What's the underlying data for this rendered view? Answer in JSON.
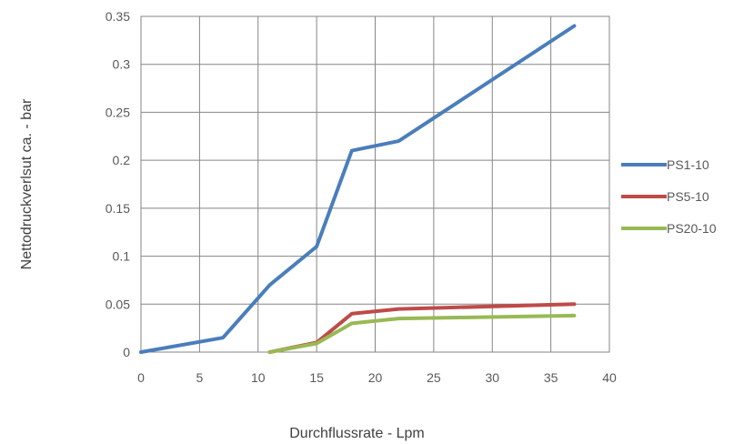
{
  "chart_data": {
    "type": "line",
    "title": "",
    "xlabel": "Durchflussrate - Lpm",
    "ylabel": "Nettodruckverlsut ca. - bar",
    "xlim": [
      0,
      40
    ],
    "ylim": [
      0,
      0.35
    ],
    "x_ticks": [
      "0",
      "5",
      "10",
      "15",
      "20",
      "25",
      "30",
      "35",
      "40"
    ],
    "y_ticks": [
      "0",
      "0.05",
      "0.1",
      "0.15",
      "0.2",
      "0.25",
      "0.3",
      "0.35"
    ],
    "grid": true,
    "legend_position": "right",
    "series": [
      {
        "name": "PS1-10",
        "color": "#4a7ebb",
        "points": [
          [
            0,
            0
          ],
          [
            7,
            0.015
          ],
          [
            11,
            0.07
          ],
          [
            15,
            0.11
          ],
          [
            18,
            0.21
          ],
          [
            22,
            0.22
          ],
          [
            37,
            0.34
          ]
        ]
      },
      {
        "name": "PS5-10",
        "color": "#be4b48",
        "points": [
          [
            11,
            0
          ],
          [
            15,
            0.01
          ],
          [
            18,
            0.04
          ],
          [
            22,
            0.045
          ],
          [
            37,
            0.05
          ]
        ]
      },
      {
        "name": "PS20-10",
        "color": "#98b954",
        "points": [
          [
            11,
            0
          ],
          [
            15,
            0.009
          ],
          [
            18,
            0.03
          ],
          [
            22,
            0.035
          ],
          [
            37,
            0.038
          ]
        ]
      }
    ]
  }
}
